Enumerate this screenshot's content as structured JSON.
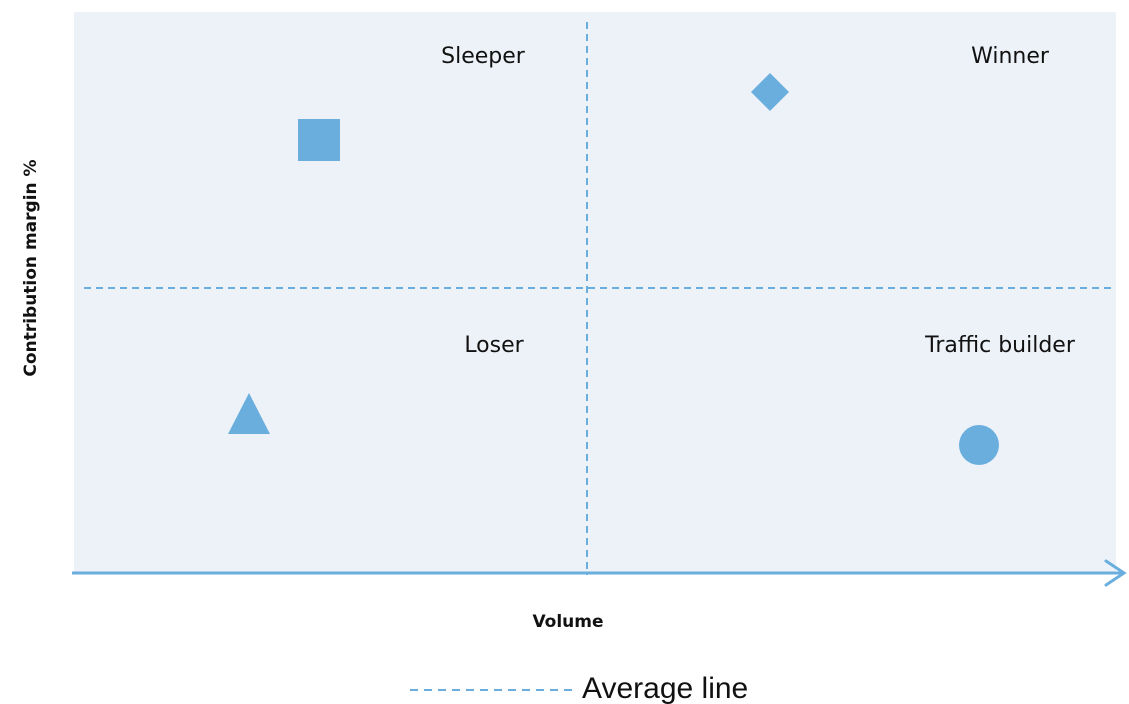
{
  "colors": {
    "plot_background": "#edf2f8",
    "axis": "#6aaedd",
    "marker": "#6aaedd",
    "average_line": "#6aaedd",
    "text": "#111111"
  },
  "axes": {
    "x_title": "Volume",
    "y_title": "Contribution margin %"
  },
  "quadrants": {
    "top_left": "Sleeper",
    "top_right": "Winner",
    "bottom_left": "Loser",
    "bottom_right": "Traffic builder"
  },
  "markers": [
    {
      "quadrant": "top_left",
      "shape": "square-icon"
    },
    {
      "quadrant": "top_right",
      "shape": "diamond-icon"
    },
    {
      "quadrant": "bottom_left",
      "shape": "triangle-icon"
    },
    {
      "quadrant": "bottom_right",
      "shape": "circle-icon"
    }
  ],
  "legend": {
    "average_line_label": "Average line"
  }
}
